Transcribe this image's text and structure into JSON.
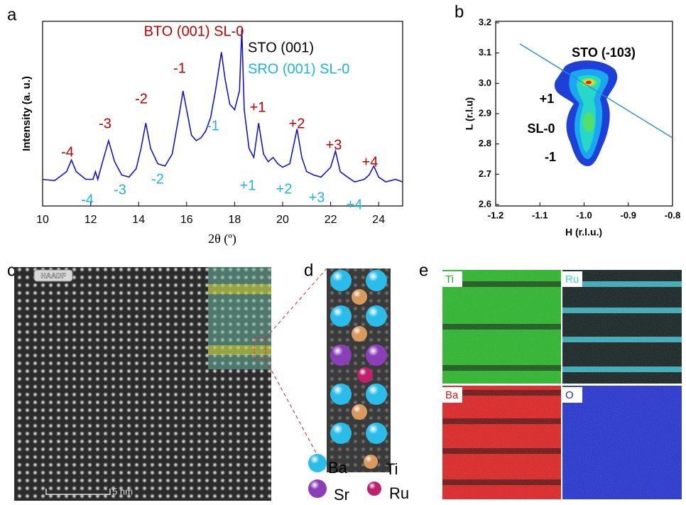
{
  "panel_labels": [
    "a",
    "b",
    "c",
    "d",
    "e"
  ],
  "chart_data": [
    {
      "type": "line",
      "xlabel": "2θ (º)",
      "ylabel": "Intensity (a. u.)",
      "x": [
        10,
        10.5,
        11.0,
        11.2,
        11.4,
        11.8,
        12.1,
        12.2,
        12.3,
        12.5,
        12.75,
        13.0,
        13.3,
        13.6,
        13.9,
        14.1,
        14.3,
        14.5,
        14.8,
        15.1,
        15.4,
        15.7,
        15.85,
        16.0,
        16.2,
        16.4,
        16.6,
        16.8,
        17.0,
        17.2,
        17.45,
        17.6,
        17.8,
        18.0,
        18.2,
        18.3,
        18.4,
        18.6,
        18.8,
        19.0,
        19.2,
        19.4,
        19.6,
        19.8,
        20.0,
        20.3,
        20.6,
        20.8,
        21.0,
        21.3,
        21.6,
        22.0,
        22.2,
        22.4,
        22.7,
        23.0,
        23.4,
        23.6,
        23.8,
        24.0,
        24.3,
        24.7,
        25.0
      ],
      "values": [
        8,
        7.5,
        12,
        22,
        12,
        8,
        8,
        12,
        8,
        20,
        60,
        20,
        10,
        9,
        14,
        40,
        150,
        40,
        18,
        16,
        30,
        250,
        800,
        300,
        80,
        60,
        70,
        100,
        200,
        800,
        6000,
        1500,
        400,
        300,
        800,
        20000,
        300,
        40,
        25,
        150,
        30,
        20,
        25,
        18,
        15,
        18,
        110,
        25,
        12,
        10,
        9,
        15,
        35,
        12,
        9,
        7,
        8,
        10,
        16,
        9,
        7,
        8,
        7
      ],
      "color": "#1414d2",
      "log_y": true,
      "xlim": [
        10,
        25
      ],
      "xticks": [
        10,
        12,
        14,
        16,
        18,
        20,
        22,
        24
      ],
      "ylim": [
        2,
        30000
      ],
      "annotations": [
        {
          "text": "BTO (001) SL-0",
          "color": "#c00000"
        },
        {
          "text": "STO (001)",
          "color": "#000000"
        },
        {
          "text": "SRO (001) SL-0",
          "color": "#1eb4e8"
        }
      ],
      "bto_peak_labels": {
        "color": "#c00000",
        "labels": [
          "-4",
          "-3",
          "-2",
          "-1",
          "+1",
          "+2",
          "+3",
          "+4"
        ]
      },
      "sro_peak_labels": {
        "color": "#1eb4e8",
        "labels": [
          "-4",
          "-3",
          "-2",
          "-1",
          "+1",
          "+2",
          "+3",
          "+4"
        ]
      }
    },
    {
      "type": "contour",
      "xlabel": "H (r.l.u.)",
      "ylabel": "L (r.l.u)",
      "xlim": [
        -1.2,
        -0.8
      ],
      "xticks": [
        -1.2,
        -1.1,
        {
          "value": -1,
          "label": "-1.0"
        },
        -0.9,
        -0.8
      ],
      "ylim": [
        2.6,
        3.2
      ],
      "yticks": [
        2.6,
        2.7,
        2.8,
        2.9,
        {
          "value": 3,
          "label": "3.0"
        },
        3.1,
        3.2
      ],
      "series": [
        {
          "x": [
            -1.145,
            -0.8
          ],
          "values": [
            3.13,
            2.82
          ],
          "color": "#2a8fd8"
        }
      ],
      "annotations": [
        "STO (-103)",
        "+1",
        "SL-0",
        "-1"
      ]
    }
  ],
  "images": {
    "c": {
      "badge": "HAADF",
      "scale_bar": "5 nm"
    },
    "d": {
      "legend": [
        {
          "element": "Ba",
          "color": "#2bbde9"
        },
        {
          "element": "Ti",
          "color": "#d99a5e"
        },
        {
          "element": "Sr",
          "color": "#8a3fb8"
        },
        {
          "element": "Ru",
          "color": "#c0206a"
        }
      ]
    },
    "e": {
      "maps": [
        {
          "label": "Ti",
          "color": "#22b522"
        },
        {
          "label": "Ru",
          "color": "#3cd0e0"
        },
        {
          "label": "Ba",
          "color": "#e01818"
        },
        {
          "label": "O",
          "color": "#1a2bd0"
        }
      ]
    }
  }
}
